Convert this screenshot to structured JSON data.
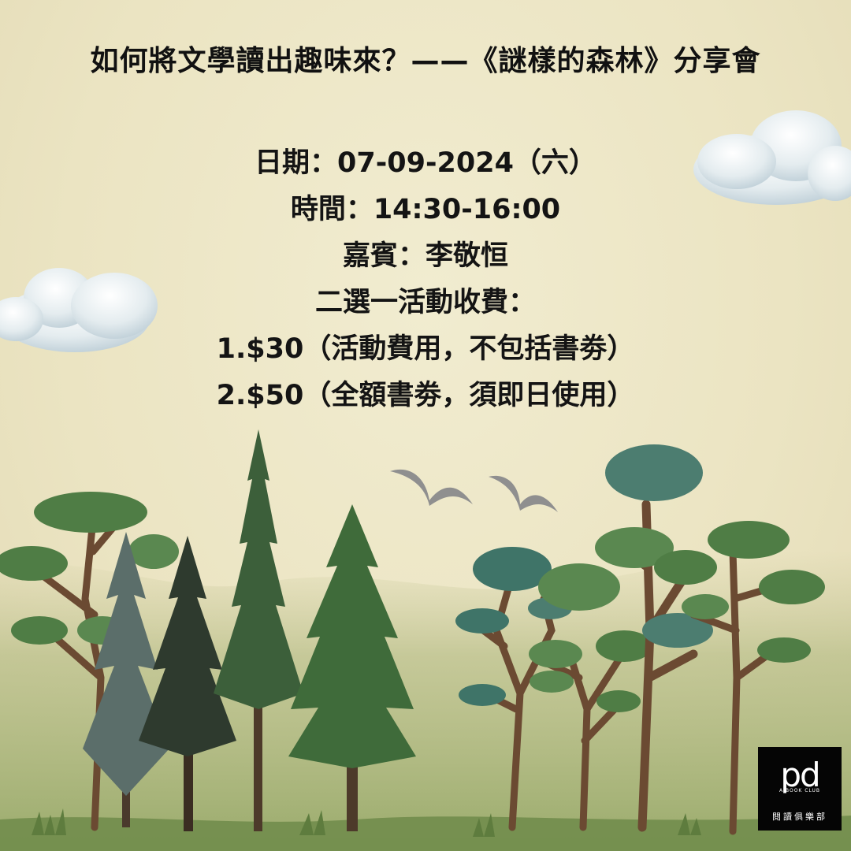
{
  "title": "如何將文學讀出趣味來？——《謎樣的森林》分享會",
  "info": {
    "date": "日期：07-09-2024（六）",
    "time": "時間：14:30-16:00",
    "guest": "嘉賓：李敬恒",
    "fee_heading": "二選一活動收費：",
    "option1": "1.$30（活動費用，不包括書劵）",
    "option2": "2.$50（全額書劵，須即日使用）"
  },
  "logo": {
    "mark": "pd",
    "tagline": "A BOOK CLUB",
    "name": "閱讀俱樂部"
  },
  "colors": {
    "background": "#ece6c4",
    "text": "#141414",
    "pine_dark": "#2e3a2e",
    "pine_green": "#3f6b3a",
    "leaf_green": "#4f7d45",
    "leaf_teal": "#3f7468",
    "trunk": "#6b4a32",
    "logo_bg": "#050505"
  }
}
